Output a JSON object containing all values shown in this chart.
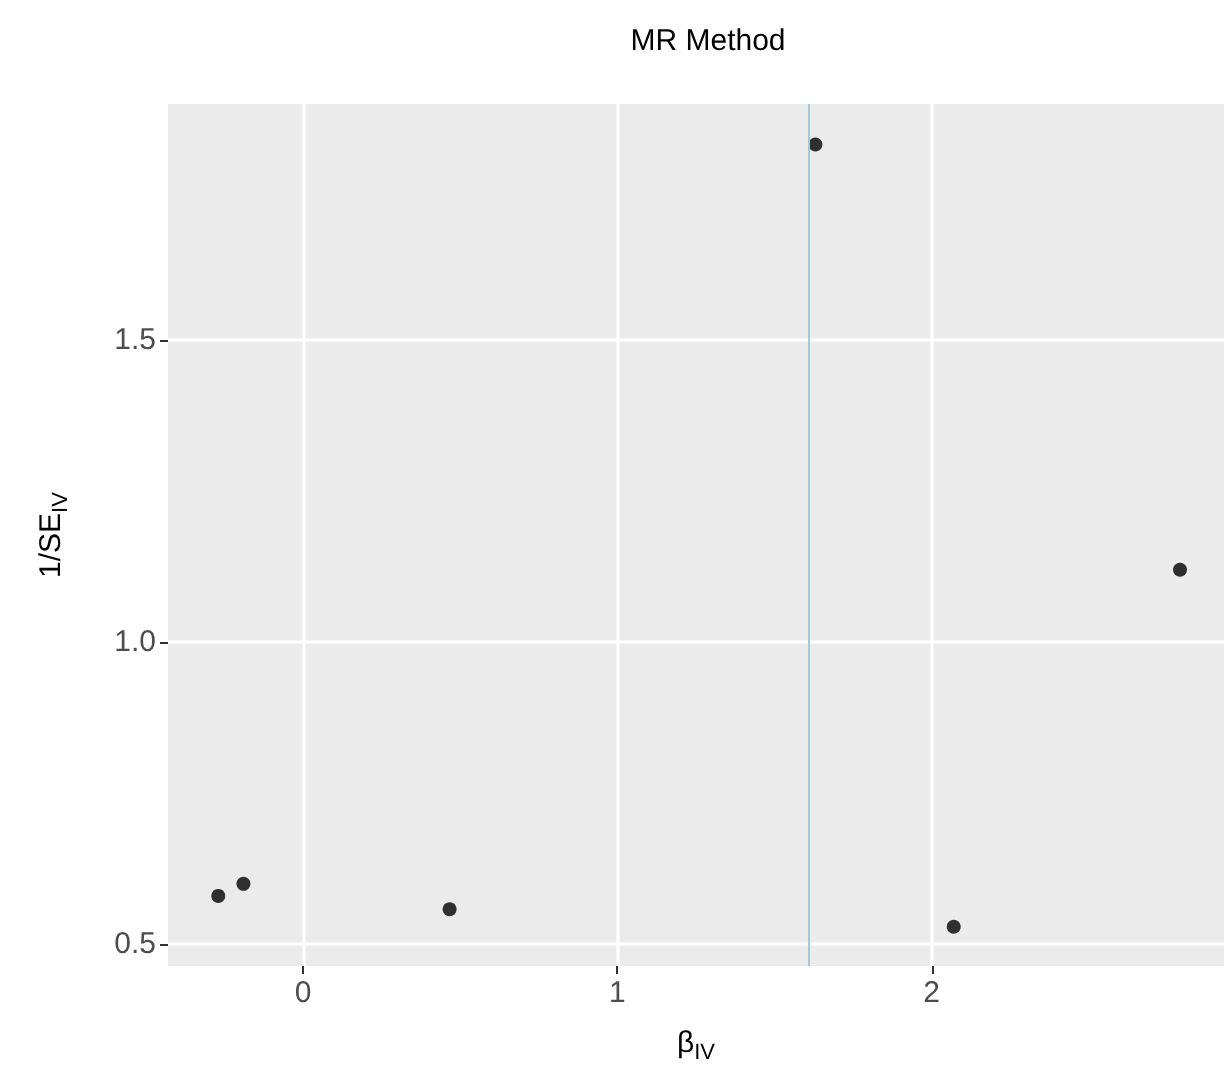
{
  "chart_data": {
    "type": "scatter",
    "title": "MR Method",
    "xlabel": "β$_{IV}$",
    "ylabel": "1/SE$_{IV}$",
    "x": [
      -0.27,
      -0.19,
      0.466,
      2.07,
      1.63,
      2.79
    ],
    "values": [
      0.579,
      0.599,
      0.557,
      0.528,
      1.823,
      1.119
    ],
    "color": "#000000",
    "marker": "circle",
    "grid": true,
    "xlim": [
      -0.43,
      2.93
    ],
    "xticks": [
      0,
      1,
      2
    ],
    "ylim": [
      0.463,
      1.89
    ],
    "yticks": [
      0.5,
      {
        "value": 1,
        "label": "1.0"
      },
      1.5
    ],
    "ref_lines": [
      {
        "axis": "x",
        "value": 1.615,
        "color": "#9ecae1",
        "line_style": "solid"
      }
    ]
  }
}
